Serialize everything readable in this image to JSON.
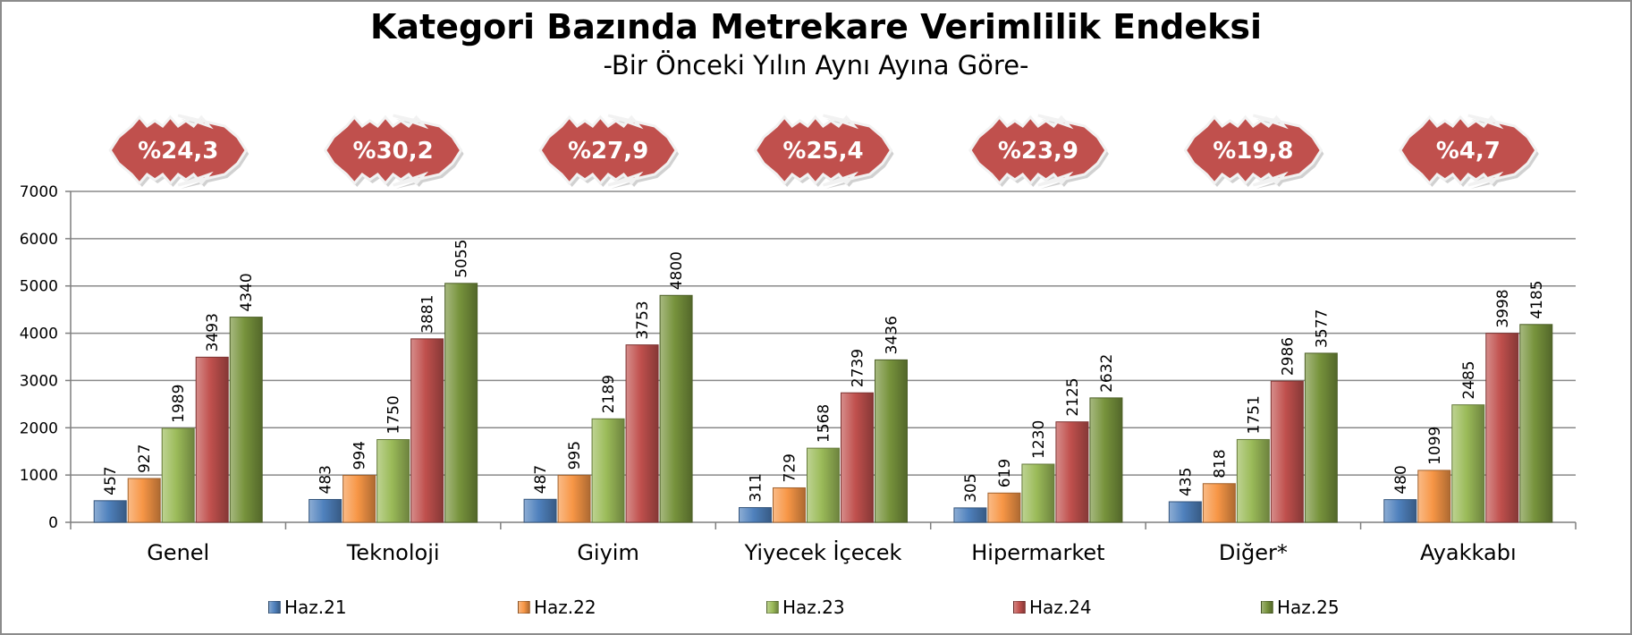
{
  "chart_data": {
    "type": "bar",
    "title": "Kategori Bazında Metrekare Verimlilik Endeksi",
    "subtitle": "-Bir Önceki Yılın Aynı Ayına Göre-",
    "categories": [
      "Genel",
      "Teknoloji",
      "Giyim",
      "Yiyecek İçecek",
      "Hipermarket",
      "Diğer*",
      "Ayakkabı"
    ],
    "series": [
      {
        "name": "Haz.21",
        "color": "#4f81bd",
        "values": [
          457,
          483,
          487,
          311,
          305,
          435,
          480
        ]
      },
      {
        "name": "Haz.22",
        "color": "#f79646",
        "values": [
          927,
          994,
          995,
          729,
          619,
          818,
          1099
        ]
      },
      {
        "name": "Haz.23",
        "color": "#9bbb59",
        "values": [
          1989,
          1750,
          2189,
          1568,
          1230,
          1751,
          2485
        ]
      },
      {
        "name": "Haz.24",
        "color": "#c0504d",
        "values": [
          3493,
          3881,
          3753,
          2739,
          2125,
          2986,
          3998
        ]
      },
      {
        "name": "Haz.25",
        "color": "#77933c",
        "values": [
          4340,
          5055,
          4800,
          3436,
          2632,
          3577,
          4185
        ]
      }
    ],
    "ylim": [
      0,
      7000
    ],
    "yticks": [
      0,
      1000,
      2000,
      3000,
      4000,
      5000,
      6000,
      7000
    ],
    "grid": true,
    "legend_position": "bottom",
    "change_badges": [
      "%24,3",
      "%30,2",
      "%27,9",
      "%25,4",
      "%23,9",
      "%19,8",
      "%4,7"
    ],
    "badge_color": "#c0504d"
  }
}
